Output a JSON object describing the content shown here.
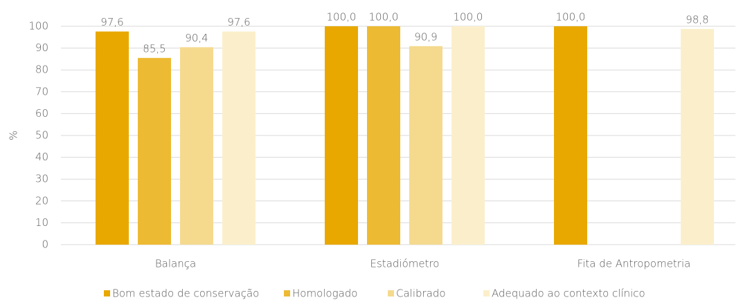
{
  "chart_data": {
    "type": "bar",
    "categories": [
      "Balança",
      "Estadiómetro",
      "Fita de Antropometria"
    ],
    "series": [
      {
        "name": "Bom estado de conservação",
        "color": "#e8a800",
        "values": [
          97.6,
          100,
          100
        ],
        "value_labels": [
          "97,6",
          "100,0",
          "100,0"
        ]
      },
      {
        "name": "Homologado",
        "color": "#edba33",
        "values": [
          85.5,
          100,
          null
        ],
        "value_labels": [
          "85,5",
          "100,0",
          null
        ]
      },
      {
        "name": "Calibrado",
        "color": "#f5da8e",
        "values": [
          90.4,
          90.9,
          null
        ],
        "value_labels": [
          "90,4",
          "90,9",
          null
        ]
      },
      {
        "name": "Adequado ao contexto clínico",
        "color": "#fbefcb",
        "values": [
          97.6,
          100,
          98.8
        ],
        "value_labels": [
          "97,6",
          "100,0",
          "98,8"
        ]
      }
    ],
    "ylabel": "%",
    "ylim": [
      0,
      100
    ],
    "yticks": [
      0,
      10,
      20,
      30,
      40,
      50,
      60,
      70,
      80,
      90,
      100
    ],
    "grid": true,
    "legend": "bottom"
  }
}
